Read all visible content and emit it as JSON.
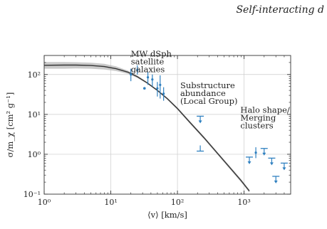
{
  "header": {
    "running_title": "Self-interacting d"
  },
  "chart_data": {
    "type": "line",
    "title": "",
    "xlabel": "⟨v⟩ [km/s]",
    "ylabel": "σ/m_χ [cm² g⁻¹]",
    "xscale": "log",
    "yscale": "log",
    "xlim": [
      1,
      5000
    ],
    "ylim": [
      0.1,
      300
    ],
    "grid": true,
    "x_ticks": [
      {
        "value": 1,
        "label": "10⁰"
      },
      {
        "value": 10,
        "label": "10¹"
      },
      {
        "value": 100,
        "label": "10²"
      },
      {
        "value": 1000,
        "label": "10³"
      }
    ],
    "y_ticks": [
      {
        "value": 0.1,
        "label": "10⁻¹"
      },
      {
        "value": 1,
        "label": "10⁰"
      },
      {
        "value": 10,
        "label": "10¹"
      },
      {
        "value": 100,
        "label": "10²"
      }
    ],
    "colors": {
      "curve": "#333333",
      "band": "#b8b8b8",
      "points": "#2f80c0",
      "grid": "#cccccc"
    },
    "series": [
      {
        "kind": "curve",
        "x": [
          1,
          2,
          3,
          5,
          8,
          12,
          18,
          25,
          35,
          50,
          70,
          100,
          150,
          250,
          400,
          600,
          900,
          1200
        ],
        "y": [
          170,
          172,
          172,
          168,
          158,
          140,
          115,
          88,
          62,
          40,
          25,
          14,
          6.6,
          2.6,
          1.05,
          0.48,
          0.22,
          0.12
        ],
        "band_upper": [
          205,
          205,
          203,
          198,
          185,
          160,
          125,
          94,
          65,
          42,
          26.5,
          15,
          7.1,
          2.8,
          1.13,
          0.52,
          0.24,
          0.13
        ],
        "band_lower": [
          140,
          140,
          142,
          140,
          133,
          122,
          104,
          82,
          59,
          38,
          23.5,
          13,
          6.1,
          2.4,
          0.97,
          0.44,
          0.2,
          0.11
        ]
      },
      {
        "kind": "measurements",
        "points": [
          {
            "x": 20,
            "y": 100,
            "yerr": [
              68,
              140
            ],
            "type": "errorbar"
          },
          {
            "x": 25,
            "y": 130,
            "yerr": [
              100,
              170
            ],
            "type": "errorbar"
          },
          {
            "x": 32,
            "y": 45,
            "type": "point"
          },
          {
            "x": 36,
            "y": 85,
            "yerr": [
              55,
              115
            ],
            "type": "errorbar"
          },
          {
            "x": 42,
            "y": 75,
            "yerr": [
              50,
              100
            ],
            "type": "errorbar"
          },
          {
            "x": 50,
            "y": 45,
            "yerr": [
              28,
              65
            ],
            "type": "errorbar"
          },
          {
            "x": 55,
            "y": 55,
            "yerr": [
              25,
              95
            ],
            "type": "errorbar"
          },
          {
            "x": 62,
            "y": 33,
            "yerr": [
              22,
              48
            ],
            "type": "errorbar"
          },
          {
            "x": 220,
            "y": 9,
            "type": "upper_limit"
          },
          {
            "x": 220,
            "y": 1.2,
            "type": "lower_limit"
          },
          {
            "x": 1200,
            "y": 0.85,
            "type": "upper_limit"
          },
          {
            "x": 1500,
            "y": 1.1,
            "yerr": [
              0.8,
              1.5
            ],
            "type": "errorbar"
          },
          {
            "x": 2000,
            "y": 1.4,
            "type": "upper_limit"
          },
          {
            "x": 2600,
            "y": 0.8,
            "type": "upper_limit"
          },
          {
            "x": 3000,
            "y": 0.28,
            "type": "upper_limit"
          },
          {
            "x": 4000,
            "y": 0.6,
            "type": "upper_limit"
          }
        ]
      }
    ],
    "annotations": [
      {
        "lines": [
          "MW dSph",
          "satellite",
          "galaxies"
        ],
        "x": 20,
        "y": 280
      },
      {
        "lines": [
          "Substructure",
          "abundance",
          "(Local Group)"
        ],
        "x": 110,
        "y": 45
      },
      {
        "lines": [
          "Halo shape/",
          "Merging",
          "clusters"
        ],
        "x": 880,
        "y": 11
      }
    ]
  }
}
